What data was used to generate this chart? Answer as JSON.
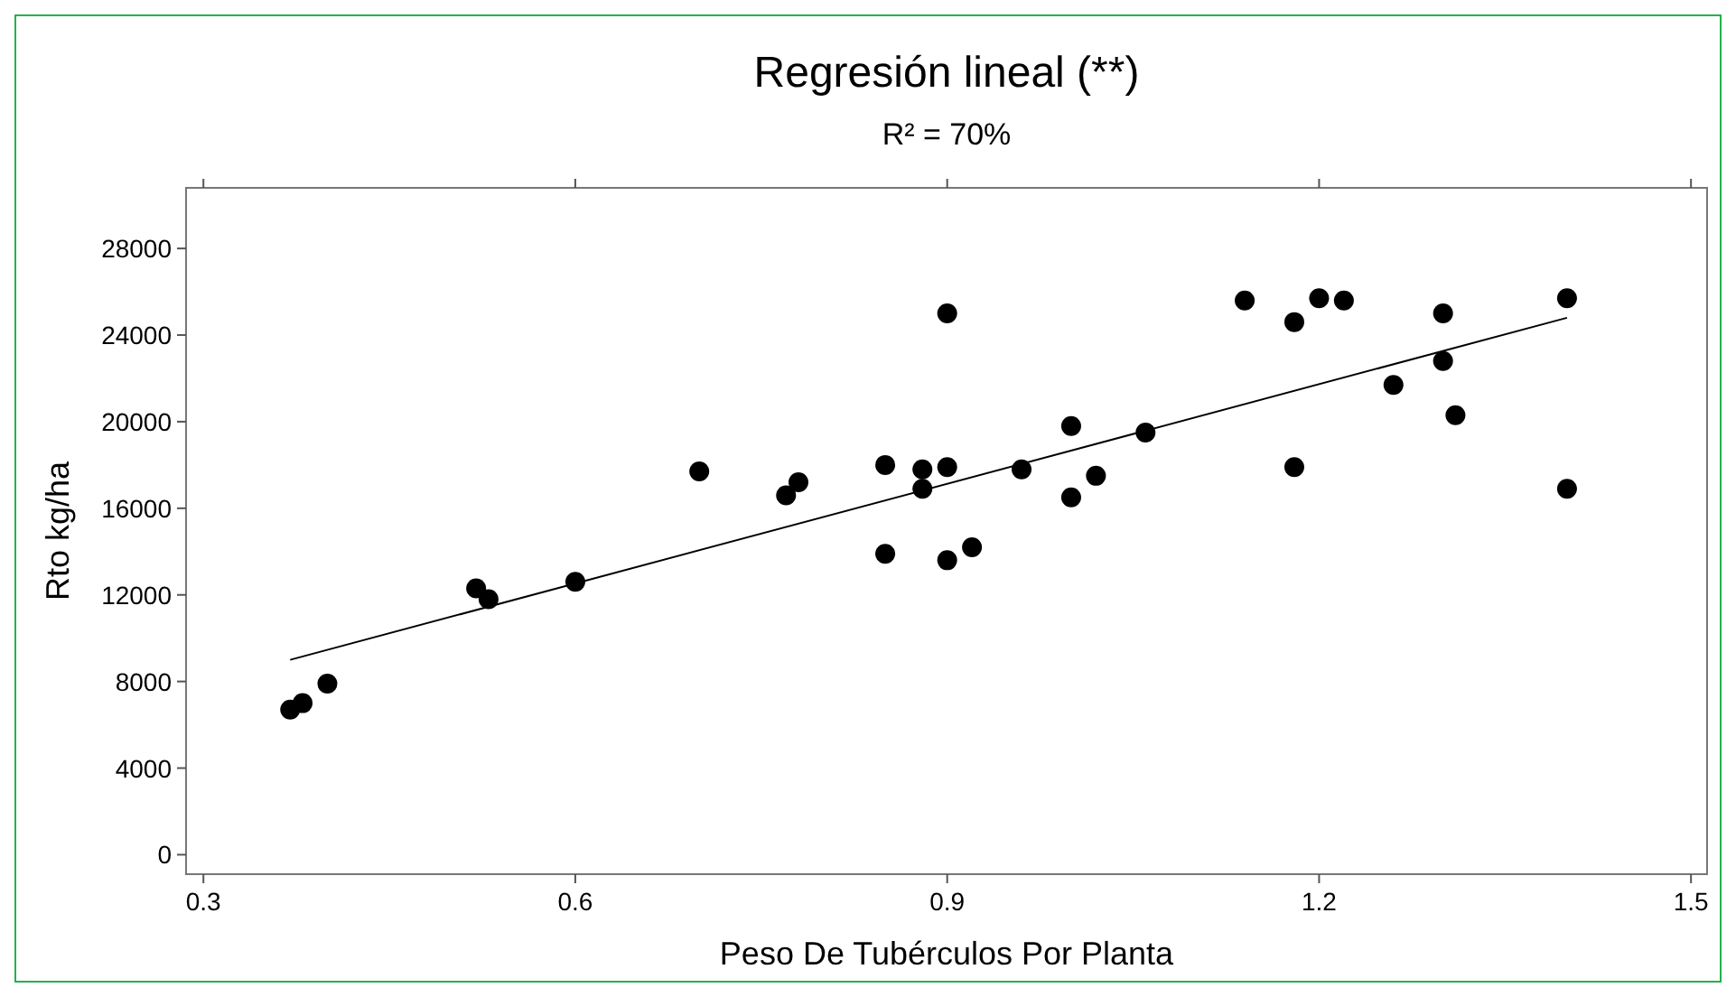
{
  "chart_data": {
    "type": "scatter",
    "title": "Regresión lineal (**)",
    "subtitle": "R² = 70%",
    "xlabel": "Peso De Tubérculos Por Planta",
    "ylabel": "Rto  kg/ha",
    "xlim": [
      0.286,
      1.513
    ],
    "xticks": [
      0.3,
      0.6,
      0.9,
      1.2,
      1.5
    ],
    "ylim": [
      -900,
      30800
    ],
    "yticks": [
      0,
      4000,
      8000,
      12000,
      16000,
      20000,
      24000,
      28000
    ],
    "grid": false,
    "series": [
      {
        "type": "scatter",
        "color": "#000000",
        "marker": "circle",
        "x": [
          0.37,
          0.38,
          0.4,
          0.52,
          0.53,
          0.6,
          0.7,
          0.77,
          0.78,
          0.85,
          0.85,
          0.88,
          0.88,
          0.9,
          0.9,
          0.9,
          0.92,
          0.96,
          1.0,
          1.0,
          1.02,
          1.06,
          1.14,
          1.18,
          1.18,
          1.2,
          1.22,
          1.26,
          1.3,
          1.3,
          1.31,
          1.4,
          1.4
        ],
        "values": [
          6700,
          7000,
          7900,
          12300,
          11800,
          12600,
          17700,
          16600,
          17200,
          18000,
          13900,
          17800,
          16900,
          25000,
          17900,
          13600,
          14200,
          17800,
          19800,
          16500,
          17500,
          19500,
          25600,
          24600,
          17900,
          25700,
          25600,
          21700,
          25000,
          22800,
          20300,
          25700,
          16900
        ]
      },
      {
        "type": "line",
        "color": "#000000",
        "marker": "none",
        "line_style": "solid",
        "x": [
          0.37,
          1.4
        ],
        "values": [
          9000,
          24800
        ]
      }
    ]
  }
}
